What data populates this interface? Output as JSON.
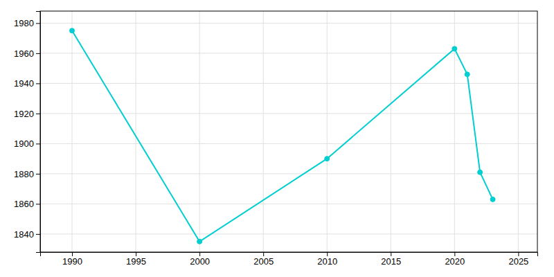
{
  "chart_data": {
    "type": "line",
    "x": [
      1990,
      2000,
      2010,
      2020,
      2021,
      2022,
      2023
    ],
    "values": [
      1975,
      1835,
      1890,
      1963,
      1946,
      1881,
      1863
    ],
    "color": "#00CED1",
    "marker": "circle",
    "xlim": [
      1987.5,
      2026.5
    ],
    "ylim": [
      1828,
      1988
    ],
    "xticks": [
      1990,
      1995,
      2000,
      2005,
      2010,
      2015,
      2020,
      2025
    ],
    "yticks": [
      1840,
      1860,
      1880,
      1900,
      1920,
      1940,
      1960,
      1980
    ],
    "grid": true
  }
}
